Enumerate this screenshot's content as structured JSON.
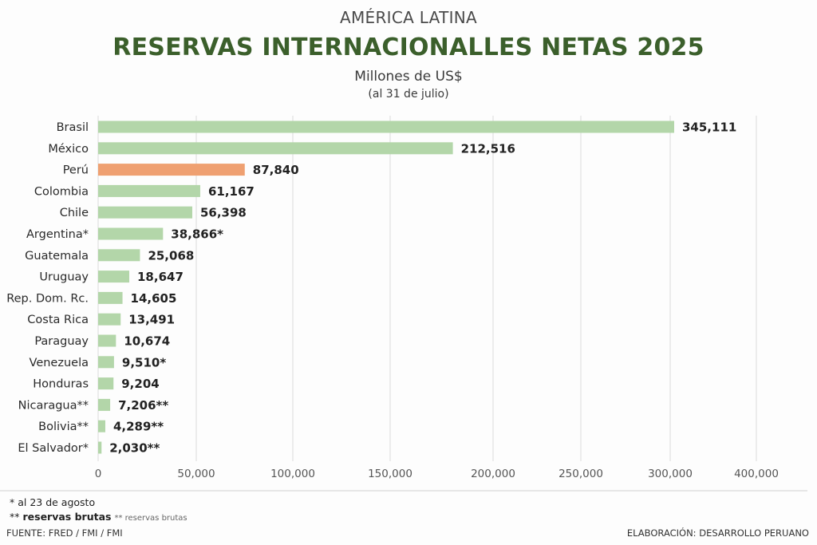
{
  "header": {
    "kicker": "AMÉRICA LATINA",
    "title": "RESERVAS INTERNACIONALLES NETAS 2025",
    "subtitle": "Millones de US$",
    "subtitle2": "(al 31 de julio)"
  },
  "chart_data": {
    "type": "bar",
    "orientation": "horizontal",
    "title": "RESERVAS INTERNACIONALLES NETAS 2025",
    "subtitle": "Millones de US$ (al 31 de julio)",
    "xlabel": "",
    "ylabel": "",
    "xlim": [
      0,
      400000
    ],
    "grid": true,
    "categories": [
      "Brasil",
      "México",
      "Perú",
      "Colombia",
      "Chile",
      "Argentina*",
      "Guatemala",
      "Uruguay",
      "Rep. Dom. Rc.",
      "Costa Rica",
      "Paraguay",
      "Venezuela",
      "Honduras",
      "Nicaragua**",
      "Bolivia**",
      "El Salvador*"
    ],
    "values": [
      345111,
      212516,
      87840,
      61167,
      56398,
      38866,
      25068,
      18647,
      14605,
      13491,
      10674,
      9510,
      9204,
      7206,
      4289,
      2030
    ],
    "value_labels": [
      "345,111",
      "212,516",
      "87,840",
      "61,167",
      "56,398",
      "38,866*",
      "25,068",
      "18,647",
      "14,605",
      "13,491",
      "10,674",
      "9,510*",
      "9,204",
      "7,206**",
      "4,289**",
      "2,030**"
    ],
    "highlight": "Perú",
    "x_ticks": [
      "0",
      "50,000",
      "100,000",
      "150,000",
      "200,000",
      "250,000",
      "300,000",
      "400,000"
    ],
    "colors": {
      "default": "#b3d6a9",
      "highlight": "#efa071",
      "grid": "#e4e4e4"
    }
  },
  "footer": {
    "note1": "*  al 23 de agosto",
    "note2_mark": "**",
    "note2_strong": "reservas brutas",
    "note2_small": "** reservas brutas",
    "source": "FUENTE: FRED / FMI / FMI",
    "credit": "ELABORACIÓN: DESARROLLO PERUANO"
  }
}
